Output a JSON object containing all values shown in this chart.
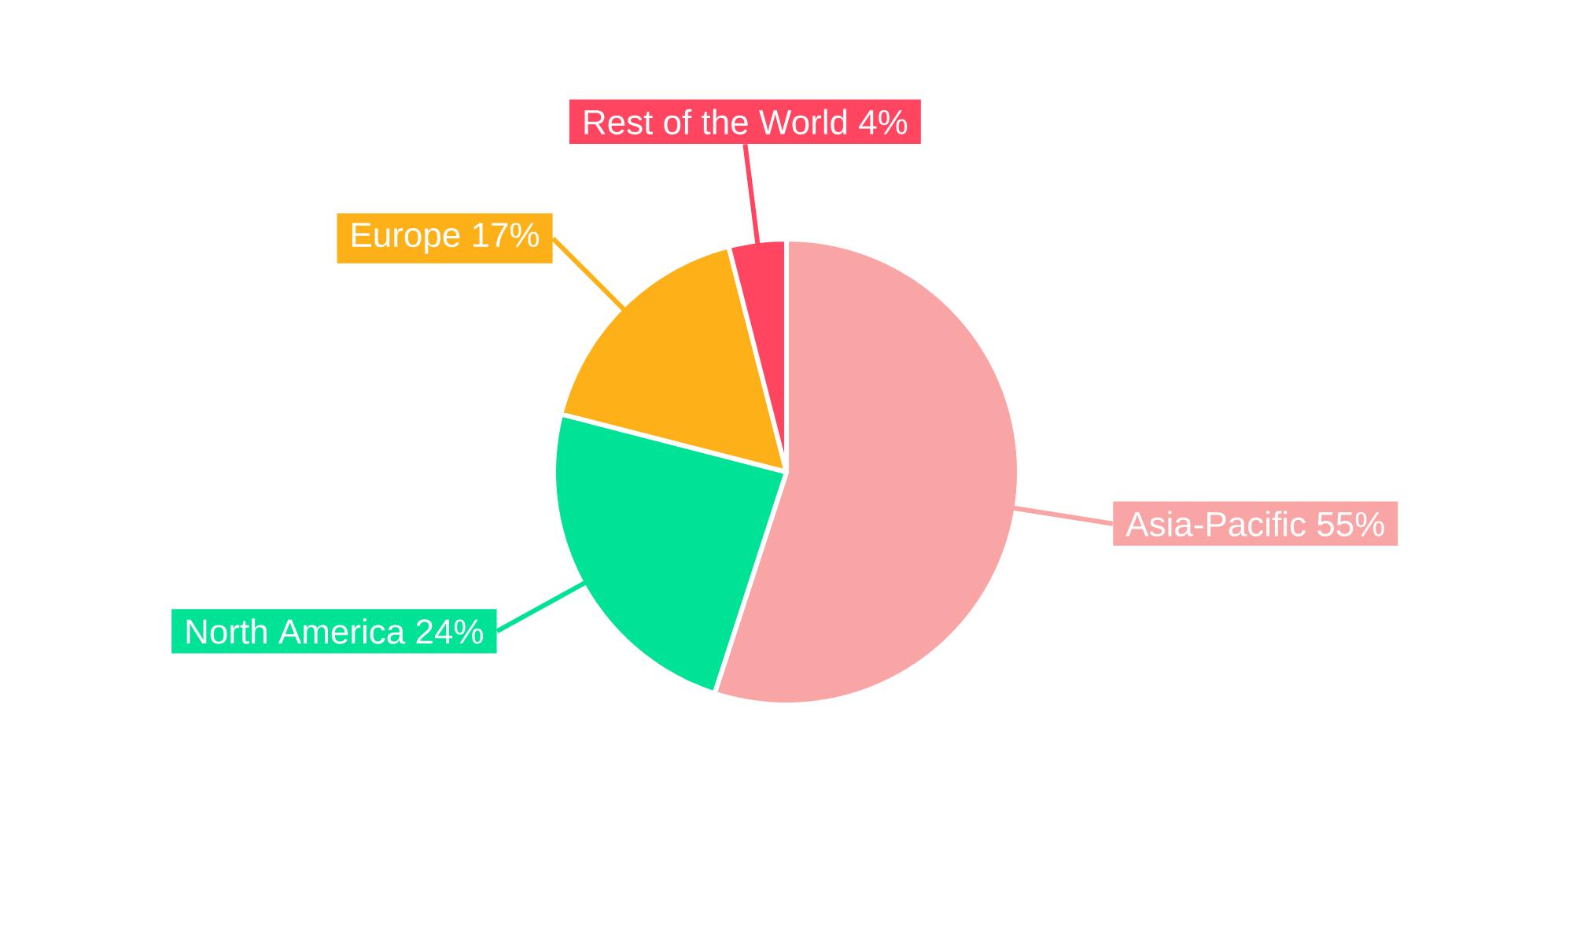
{
  "chart_data": {
    "type": "pie",
    "categories": [
      "Asia-Pacific",
      "North America",
      "Europe",
      "Rest of the World"
    ],
    "values": [
      55,
      24,
      17,
      4
    ],
    "value_labels": [
      "55%",
      "24%",
      "17%",
      "4%"
    ],
    "colors": [
      "#f9a5a5",
      "#00e396",
      "#feb019",
      "#ff4560"
    ]
  }
}
